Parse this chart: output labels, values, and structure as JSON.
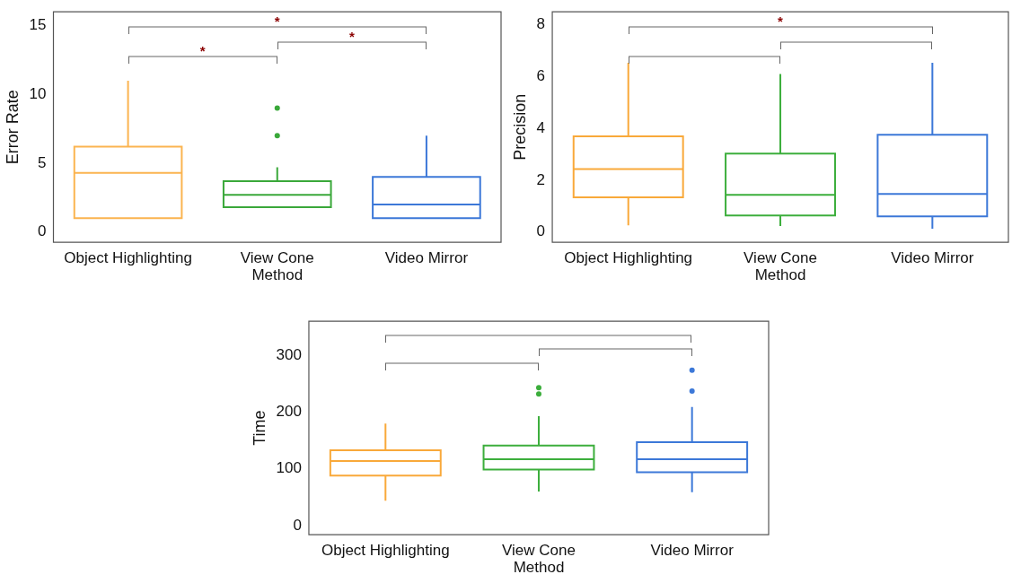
{
  "chart_data": [
    {
      "type": "box",
      "xlabel": "Method",
      "ylabel": "Error Rate",
      "categories": [
        "Object Highlighting",
        "View Cone",
        "Video Mirror"
      ],
      "colors": [
        "#fbb450",
        "#3aa83a",
        "#3c78d8"
      ],
      "boxes": [
        {
          "low": 1,
          "q1": 1,
          "median": 4.3,
          "q3": 6.2,
          "high": 11
        },
        {
          "low": 1.8,
          "q1": 1.8,
          "median": 2.7,
          "q3": 3.7,
          "high": 4.7,
          "outliers": [
            9,
            7
          ]
        },
        {
          "low": 1,
          "q1": 1,
          "median": 2,
          "q3": 4,
          "high": 7
        }
      ],
      "ylim": [
        -0.75,
        16
      ],
      "yticks": [
        0,
        5,
        10,
        15
      ],
      "grid": false,
      "annotations": [
        "*",
        "*",
        "*"
      ]
    },
    {
      "type": "box",
      "xlabel": "Method",
      "ylabel": "Precision",
      "categories": [
        "Object Highlighting",
        "View Cone",
        "Video Mirror"
      ],
      "colors": [
        "#f9a93a",
        "#3cae3c",
        "#3c78d8"
      ],
      "boxes": [
        {
          "low": 0.26,
          "q1": 1.34,
          "median": 2.43,
          "q3": 3.69,
          "high": 6.53
        },
        {
          "low": 0.23,
          "q1": 0.64,
          "median": 1.43,
          "q3": 3.03,
          "high": 6.1
        },
        {
          "low": 0.13,
          "q1": 0.6,
          "median": 1.47,
          "q3": 3.75,
          "high": 6.53
        }
      ],
      "ylim": [
        -0.4,
        8.5
      ],
      "yticks": [
        0,
        2,
        4,
        6,
        8
      ],
      "grid": false,
      "annotations": [
        "*"
      ]
    },
    {
      "type": "box",
      "xlabel": "Method",
      "ylabel": "Time",
      "categories": [
        "Object Highlighting",
        "View Cone",
        "Video Mirror"
      ],
      "colors": [
        "#f9a93a",
        "#3cae3c",
        "#3c78d8"
      ],
      "boxes": [
        {
          "low": 44,
          "q1": 88,
          "median": 114,
          "q3": 133,
          "high": 180
        },
        {
          "low": 60,
          "q1": 99,
          "median": 117,
          "q3": 141,
          "high": 193,
          "outliers": [
            243,
            232
          ]
        },
        {
          "low": 59,
          "q1": 94,
          "median": 117,
          "q3": 147,
          "high": 209,
          "outliers": [
            274,
            237
          ]
        }
      ],
      "ylim": [
        -16,
        360
      ],
      "yticks": [
        0,
        100,
        200,
        300
      ],
      "grid": false
    }
  ]
}
